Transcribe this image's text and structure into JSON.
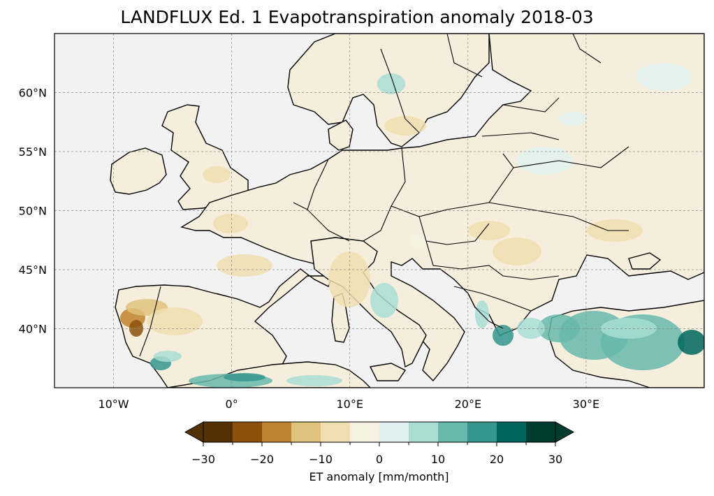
{
  "title": "LANDFLUX Ed. 1 Evapotranspiration anomaly 2018-03",
  "map": {
    "lon_ticks": [
      {
        "value": -10,
        "label": "10°W"
      },
      {
        "value": 0,
        "label": "0°"
      },
      {
        "value": 10,
        "label": "10°E"
      },
      {
        "value": 20,
        "label": "20°E"
      },
      {
        "value": 30,
        "label": "30°E"
      }
    ],
    "lat_ticks": [
      {
        "value": 60,
        "label": "60°N"
      },
      {
        "value": 55,
        "label": "55°N"
      },
      {
        "value": 50,
        "label": "50°N"
      },
      {
        "value": 45,
        "label": "45°N"
      },
      {
        "value": 40,
        "label": "40°N"
      }
    ],
    "extent": {
      "lon": [
        -15,
        40
      ],
      "lat": [
        35,
        65
      ]
    },
    "ocean_color": "#f2f2f2",
    "land_color": "#f5eedc",
    "grid": true
  },
  "colorbar": {
    "label": "ET anomaly [mm/month]",
    "boundaries": [
      -30,
      -25,
      -20,
      -15,
      -10,
      -5,
      0,
      5,
      10,
      15,
      20,
      25,
      30
    ],
    "colors": [
      "#543005",
      "#8c510a",
      "#bf812d",
      "#dfc27d",
      "#f0deb0",
      "#f6f0e1",
      "#e0f1ef",
      "#a8ddd4",
      "#66b9ab",
      "#35978f",
      "#01665e",
      "#003c30"
    ],
    "extend_colors": {
      "min": "#543005",
      "max": "#003c30"
    },
    "tick_values": [
      -30,
      -20,
      -10,
      0,
      10,
      20,
      30
    ],
    "tick_labels": [
      "−30",
      "−20",
      "−10",
      "0",
      "10",
      "20",
      "30"
    ]
  }
}
